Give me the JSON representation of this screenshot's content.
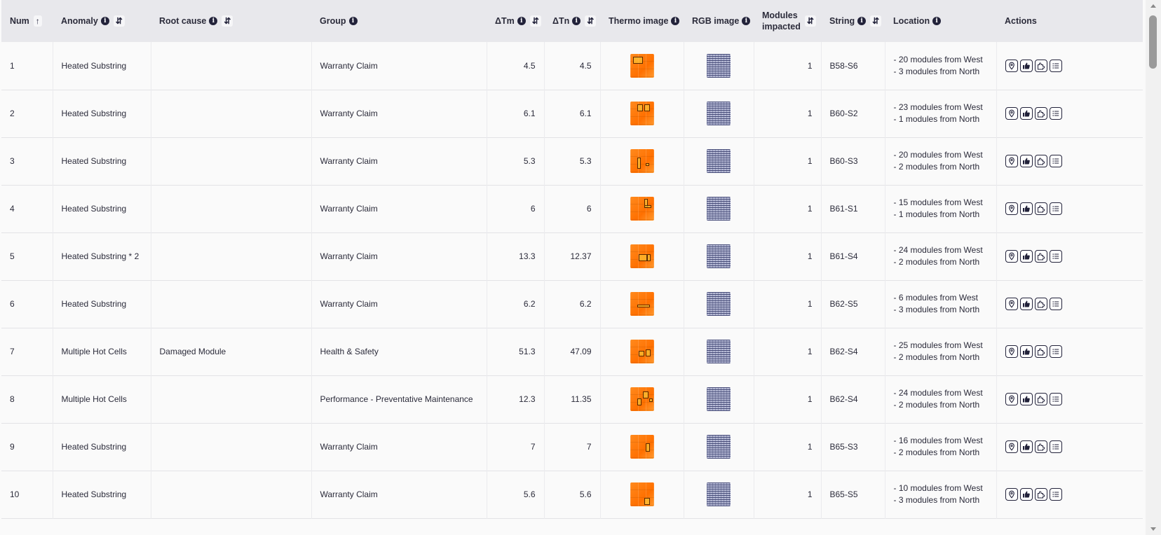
{
  "columns": {
    "num": "Num",
    "anomaly": "Anomaly",
    "root_cause": "Root cause",
    "group": "Group",
    "dtm": "ΔTm",
    "dtn": "ΔTn",
    "thermo": "Thermo image",
    "rgb": "RGB image",
    "modules_line1": "Modules",
    "modules_line2": "impacted",
    "string": "String",
    "location": "Location",
    "actions": "Actions"
  },
  "rows": [
    {
      "num": "1",
      "anomaly": "Heated Substring",
      "root_cause": "",
      "group": "Warranty Claim",
      "dtm": "4.5",
      "dtn": "4.5",
      "modules": "1",
      "string": "B58-S6",
      "loc1": "- 20 modules from West",
      "loc2": "- 3 modules from North"
    },
    {
      "num": "2",
      "anomaly": "Heated Substring",
      "root_cause": "",
      "group": "Warranty Claim",
      "dtm": "6.1",
      "dtn": "6.1",
      "modules": "1",
      "string": "B60-S2",
      "loc1": "- 23 modules from West",
      "loc2": "- 1 modules from North"
    },
    {
      "num": "3",
      "anomaly": "Heated Substring",
      "root_cause": "",
      "group": "Warranty Claim",
      "dtm": "5.3",
      "dtn": "5.3",
      "modules": "1",
      "string": "B60-S3",
      "loc1": "- 20 modules from West",
      "loc2": "- 2 modules from North"
    },
    {
      "num": "4",
      "anomaly": "Heated Substring",
      "root_cause": "",
      "group": "Warranty Claim",
      "dtm": "6",
      "dtn": "6",
      "modules": "1",
      "string": "B61-S1",
      "loc1": "- 15 modules from West",
      "loc2": "- 1 modules from North"
    },
    {
      "num": "5",
      "anomaly": "Heated Substring * 2",
      "root_cause": "",
      "group": "Warranty Claim",
      "dtm": "13.3",
      "dtn": "12.37",
      "modules": "1",
      "string": "B61-S4",
      "loc1": "- 24 modules from West",
      "loc2": "- 2 modules from North"
    },
    {
      "num": "6",
      "anomaly": "Heated Substring",
      "root_cause": "",
      "group": "Warranty Claim",
      "dtm": "6.2",
      "dtn": "6.2",
      "modules": "1",
      "string": "B62-S5",
      "loc1": "- 6 modules from West",
      "loc2": "- 3 modules from North"
    },
    {
      "num": "7",
      "anomaly": "Multiple Hot Cells",
      "root_cause": "Damaged Module",
      "group": "Health & Safety",
      "dtm": "51.3",
      "dtn": "47.09",
      "modules": "1",
      "string": "B62-S4",
      "loc1": "- 25 modules from West",
      "loc2": "- 2 modules from North"
    },
    {
      "num": "8",
      "anomaly": "Multiple Hot Cells",
      "root_cause": "",
      "group": "Performance - Preventative Maintenance",
      "dtm": "12.3",
      "dtn": "11.35",
      "modules": "1",
      "string": "B62-S4",
      "loc1": "- 24 modules from West",
      "loc2": "- 2 modules from North"
    },
    {
      "num": "9",
      "anomaly": "Heated Substring",
      "root_cause": "",
      "group": "Warranty Claim",
      "dtm": "7",
      "dtn": "7",
      "modules": "1",
      "string": "B65-S3",
      "loc1": "- 16 modules from West",
      "loc2": "- 2 modules from North"
    },
    {
      "num": "10",
      "anomaly": "Heated Substring",
      "root_cause": "",
      "group": "Warranty Claim",
      "dtm": "5.6",
      "dtn": "5.6",
      "modules": "1",
      "string": "B65-S5",
      "loc1": "- 10 modules from West",
      "loc2": "- 3 modules from North"
    }
  ],
  "icons": {
    "info": "info-icon",
    "sort_asc": "arrow-up-icon",
    "sort": "sort-icon",
    "actions": [
      "map-pin-icon",
      "thumbs-up-icon",
      "puzzle-icon",
      "list-icon"
    ]
  },
  "colors": {
    "header_bg": "#e8e8ec",
    "thermo": "#ff7a10",
    "icon": "#22223a"
  }
}
